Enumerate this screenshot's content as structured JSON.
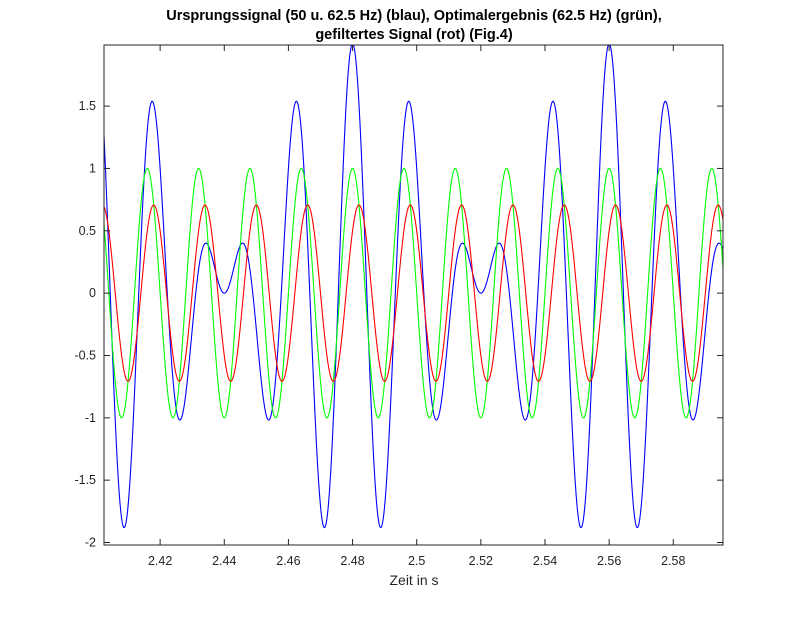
{
  "chart_data": {
    "type": "line",
    "title_line1": "Ursprungssignal (50 u. 62.5 Hz) (blau), Optimalergebnis (62.5 Hz) (grün),",
    "title_line2": "gefiltertes Signal (rot) (Fig.4)",
    "xlabel": "Zeit in s",
    "ylabel": "",
    "xlim": [
      2.4025,
      2.5955
    ],
    "ylim": [
      -2.02,
      1.99
    ],
    "xticks": [
      2.42,
      2.44,
      2.46,
      2.48,
      2.5,
      2.52,
      2.54,
      2.56,
      2.58
    ],
    "xtick_labels": [
      "2.42",
      "2.44",
      "2.46",
      "2.48",
      "2.5",
      "2.52",
      "2.54",
      "2.56",
      "2.58"
    ],
    "yticks": [
      -2,
      -1.5,
      -1,
      -0.5,
      0,
      0.5,
      1,
      1.5
    ],
    "ytick_labels": [
      "-2",
      "-1.5",
      "-1",
      "-0.5",
      "0",
      "0.5",
      "1",
      "1.5"
    ],
    "grid": false,
    "series": [
      {
        "color": "#0000ff",
        "formula": "cos(2*pi*50*t) + cos(2*pi*62.5*t)",
        "components": [
          {
            "amplitude": 1,
            "frequency_hz": 50
          },
          {
            "amplitude": 1,
            "frequency_hz": 62.5
          }
        ]
      },
      {
        "color": "#00ff00",
        "formula": "cos(2*pi*62.5*t)",
        "components": [
          {
            "amplitude": 1,
            "frequency_hz": 62.5
          }
        ]
      },
      {
        "color": "#ff0000",
        "formula": "0.707*cos(2*pi*62.5*t - 0.785)",
        "components": [
          {
            "amplitude": 0.707,
            "frequency_hz": 62.5,
            "phase_rad": -0.785
          }
        ]
      }
    ]
  }
}
